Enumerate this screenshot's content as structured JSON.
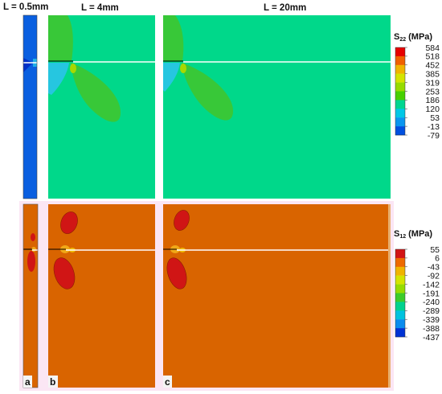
{
  "figure": {
    "titles": {
      "a": "L = 0.5mm",
      "b": "L = 4mm",
      "c": "L = 20mm"
    },
    "panel_labels": {
      "a": "a",
      "b": "b",
      "c": "c"
    },
    "colors": {
      "s22_background": "#00D88A",
      "s22_strip": "#0A5FE0",
      "s12_background": "#D96400",
      "lobe_green": "#38C838",
      "lobe_cyan": "#26C6E0",
      "lobe_red": "#D01515",
      "lobe_orange": "#F0A818",
      "crack": "#ffffff"
    },
    "legends": {
      "s22": {
        "symbol": "S",
        "subscript": "22",
        "unit": "(MPa)",
        "ticks": [
          "584",
          "518",
          "452",
          "385",
          "319",
          "253",
          "186",
          "120",
          "53",
          "-13",
          "-79"
        ],
        "colors": [
          "#E60000",
          "#F06000",
          "#F0B400",
          "#D4E400",
          "#96DC00",
          "#46D000",
          "#00D690",
          "#00C8E6",
          "#0A96F0",
          "#0050E0"
        ]
      },
      "s12": {
        "symbol": "S",
        "subscript": "12",
        "unit": "(MPa)",
        "ticks": [
          "55",
          "6",
          "-43",
          "-92",
          "-142",
          "-191",
          "-240",
          "-289",
          "-339",
          "-388",
          "-437"
        ],
        "colors": [
          "#D21414",
          "#EE6A00",
          "#F0B400",
          "#D4E400",
          "#96DC00",
          "#3CCC2A",
          "#00D28E",
          "#00C2DE",
          "#0A8CEE",
          "#0032D4"
        ]
      }
    }
  }
}
